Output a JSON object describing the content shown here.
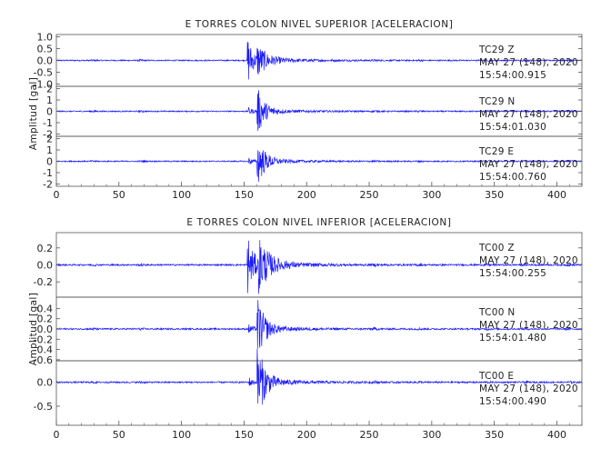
{
  "chart_data": [
    {
      "type": "line",
      "title": "E TORRES COLON NIVEL SUPERIOR [ACELERACION]",
      "ylabel": "Amplitud [gal]",
      "xlim": [
        0,
        420
      ],
      "x_ticks": [
        0,
        50,
        100,
        150,
        200,
        250,
        300,
        350,
        400
      ],
      "grid": false,
      "panels": [
        {
          "ylim": [
            -1.1,
            1.1
          ],
          "y_ticks": [
            1.0,
            0.5,
            0.0,
            -0.5,
            -1.0
          ],
          "y_tick_labels": [
            "1.0",
            "0.5",
            "0.0",
            "-0.5",
            "-1.0"
          ],
          "annotation": [
            "TC29 Z",
            "MAY 27 (148), 2020",
            "15:54:00.915"
          ],
          "events": [
            {
              "t": 153,
              "amp": 1.0,
              "decay": 4
            },
            {
              "t": 161,
              "amp": 0.55,
              "decay": 8
            }
          ]
        },
        {
          "ylim": [
            -2.2,
            2.2
          ],
          "y_ticks": [
            2,
            1,
            0,
            -1,
            -2
          ],
          "y_tick_labels": [
            "2",
            "1",
            "0",
            "-1",
            "-2"
          ],
          "annotation": [
            "TC29 N",
            "MAY 27 (148), 2020",
            "15:54:01.030"
          ],
          "events": [
            {
              "t": 161,
              "amp": 1.9,
              "decay": 6
            },
            {
              "t": 154,
              "amp": 0.3,
              "decay": 3
            }
          ]
        },
        {
          "ylim": [
            -2.2,
            2.2
          ],
          "y_ticks": [
            2,
            1,
            0,
            -1,
            -2
          ],
          "y_tick_labels": [
            "2",
            "1",
            "0",
            "-1",
            "-2"
          ],
          "annotation": [
            "TC29 E",
            "MAY 27 (148), 2020",
            "15:54:00.760"
          ],
          "events": [
            {
              "t": 161,
              "amp": 2.0,
              "decay": 6
            },
            {
              "t": 154,
              "amp": 0.3,
              "decay": 3
            }
          ]
        }
      ]
    },
    {
      "type": "line",
      "title": "E TORRES COLON NIVEL INFERIOR [ACELERACION]",
      "ylabel": "Amplitud [gal]",
      "xlim": [
        0,
        420
      ],
      "x_ticks": [
        0,
        50,
        100,
        150,
        200,
        250,
        300,
        350,
        400
      ],
      "grid": false,
      "panels": [
        {
          "ylim": [
            -0.38,
            0.38
          ],
          "y_ticks": [
            0.2,
            0.0,
            -0.2
          ],
          "y_tick_labels": [
            "0.2",
            "0.0",
            "-0.2"
          ],
          "annotation": [
            "TC00 Z",
            "MAY 27 (148), 2020",
            "15:54:00.255"
          ],
          "events": [
            {
              "t": 153,
              "amp": 0.34,
              "decay": 5
            },
            {
              "t": 162,
              "amp": 0.26,
              "decay": 9
            }
          ]
        },
        {
          "ylim": [
            -0.62,
            0.62
          ],
          "y_ticks": [
            0.4,
            0.2,
            0.0,
            -0.2,
            -0.4,
            -0.6
          ],
          "y_tick_labels": [
            "0.4",
            "0.2",
            "0.0",
            "-0.2",
            "-0.4",
            "-0.6"
          ],
          "annotation": [
            "TC00 N",
            "MAY 27 (148), 2020",
            "15:54:01.480"
          ],
          "events": [
            {
              "t": 161,
              "amp": 0.55,
              "decay": 6
            },
            {
              "t": 154,
              "amp": 0.1,
              "decay": 3
            }
          ]
        },
        {
          "ylim": [
            -0.9,
            0.45
          ],
          "y_ticks": [
            0.0,
            -0.5
          ],
          "y_tick_labels": [
            "0.0",
            "-0.5"
          ],
          "annotation": [
            "TC00 E",
            "MAY 27 (148), 2020",
            "15:54:00.490"
          ],
          "events": [
            {
              "t": 161,
              "amp": 0.75,
              "decay": 6
            },
            {
              "t": 154,
              "amp": 0.1,
              "decay": 3
            }
          ]
        }
      ]
    }
  ],
  "colors": {
    "trace": "#1a1aff",
    "axis": "#555555",
    "text": "#222222"
  }
}
